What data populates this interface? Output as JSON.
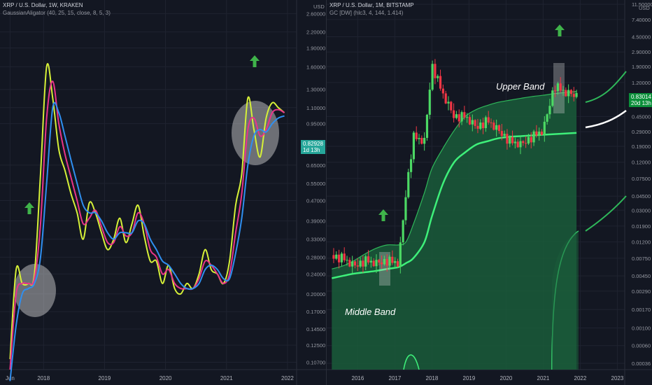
{
  "colors": {
    "background": "#131722",
    "grid": "#1f2330",
    "up": "#4cd964",
    "down": "#f23645",
    "arrow": "#3fb34a",
    "line_yellow": "#d6f038",
    "line_pink": "#e9348a",
    "line_blue": "#2f8ff0",
    "band_fill": "#1a5c3a",
    "band_line": "#3ef07a"
  },
  "left_chart": {
    "title": "XRP / U.S. Dollar, 1W, KRAKEN",
    "indicator": "GaussianAligator (40, 25, 15, close, 8, 5, 3)",
    "price_tag": "0.82928",
    "time_tag": "1d 13h",
    "y_unit": "USD",
    "y_ticks": [
      "2.60000",
      "2.20000",
      "1.90000",
      "1.60000",
      "1.30000",
      "1.10000",
      "0.95000",
      "0.65000",
      "0.55000",
      "0.47000",
      "0.39000",
      "0.33000",
      "0.28000",
      "0.24000",
      "0.20000",
      "0.17000",
      "0.14500",
      "0.12500",
      "0.10700"
    ],
    "x_ticks": [
      "Jun",
      "2018",
      "2019",
      "2020",
      "2021",
      "2022"
    ]
  },
  "right_chart": {
    "title": "XRP / U.S. Dollar, 1M, BITSTAMP",
    "indicator": "GC [DW] (hlc3, 4, 144, 1.414)",
    "price_tag": "0.83014",
    "time_tag": "20d 13h",
    "y_unit": "USD",
    "y_ticks": [
      "11.50000",
      "7.40000",
      "4.50000",
      "2.90000",
      "1.90000",
      "1.20000",
      "0.45000",
      "0.29000",
      "0.19000",
      "0.12000",
      "0.07500",
      "0.04500",
      "0.03000",
      "0.01900",
      "0.01200",
      "0.00750",
      "0.00450",
      "0.00290",
      "0.00170",
      "0.00100",
      "0.00060",
      "0.00036"
    ],
    "x_ticks": [
      "2016",
      "2017",
      "2018",
      "2019",
      "2020",
      "2021",
      "2022",
      "2023"
    ],
    "upper_band_label": "Upper Band",
    "middle_band_label": "Middle Band"
  },
  "chart_data": [
    {
      "type": "line",
      "title": "XRP / U.S. Dollar, 1W, KRAKEN",
      "subtitle": "GaussianAligator (40, 25, 15, close, 8, 5, 3)",
      "y_scale": "log",
      "ylim": [
        0.1,
        2.8
      ],
      "x": [
        2017.45,
        2017.55,
        2017.65,
        2017.75,
        2017.85,
        2017.95,
        2018.05,
        2018.15,
        2018.25,
        2018.35,
        2018.45,
        2018.55,
        2018.65,
        2018.75,
        2018.85,
        2018.95,
        2019.05,
        2019.15,
        2019.25,
        2019.35,
        2019.45,
        2019.55,
        2019.65,
        2019.75,
        2019.85,
        2019.95,
        2020.05,
        2020.15,
        2020.25,
        2020.35,
        2020.45,
        2020.55,
        2020.65,
        2020.75,
        2020.85,
        2020.95,
        2021.05,
        2021.15,
        2021.25,
        2021.35,
        2021.45,
        2021.55,
        2021.65,
        2021.75,
        2021.85,
        2021.95
      ],
      "series": [
        {
          "name": "15",
          "values": [
            0.11,
            0.25,
            0.22,
            0.22,
            0.24,
            0.6,
            1.6,
            1.2,
            0.75,
            0.62,
            0.5,
            0.42,
            0.33,
            0.46,
            0.42,
            0.35,
            0.3,
            0.33,
            0.4,
            0.32,
            0.38,
            0.45,
            0.34,
            0.27,
            0.27,
            0.22,
            0.26,
            0.21,
            0.2,
            0.22,
            0.21,
            0.24,
            0.3,
            0.25,
            0.24,
            0.22,
            0.27,
            0.45,
            0.6,
            1.2,
            0.9,
            0.7,
            1.0,
            1.15,
            1.1,
            1.05
          ]
        },
        {
          "name": "25",
          "values": [
            0.1,
            0.2,
            0.22,
            0.22,
            0.23,
            0.38,
            1.0,
            1.4,
            0.95,
            0.72,
            0.58,
            0.47,
            0.38,
            0.4,
            0.43,
            0.37,
            0.32,
            0.32,
            0.37,
            0.34,
            0.35,
            0.42,
            0.38,
            0.3,
            0.28,
            0.24,
            0.25,
            0.22,
            0.21,
            0.21,
            0.21,
            0.23,
            0.27,
            0.26,
            0.24,
            0.22,
            0.24,
            0.35,
            0.5,
            0.9,
            1.0,
            0.85,
            0.9,
            1.05,
            1.08,
            1.05
          ]
        },
        {
          "name": "40",
          "values": [
            0.09,
            0.15,
            0.2,
            0.21,
            0.22,
            0.28,
            0.55,
            1.1,
            1.05,
            0.85,
            0.68,
            0.55,
            0.45,
            0.42,
            0.42,
            0.39,
            0.35,
            0.33,
            0.35,
            0.35,
            0.35,
            0.39,
            0.38,
            0.33,
            0.3,
            0.27,
            0.26,
            0.24,
            0.22,
            0.21,
            0.21,
            0.22,
            0.25,
            0.26,
            0.25,
            0.23,
            0.23,
            0.29,
            0.4,
            0.65,
            0.85,
            0.9,
            0.88,
            0.95,
            1.0,
            1.02
          ]
        }
      ]
    },
    {
      "type": "line",
      "title": "XRP / U.S. Dollar, 1M, BITSTAMP",
      "subtitle": "GC [DW] (hlc3, 4, 144, 1.414)",
      "y_scale": "log",
      "ylim": [
        0.0003,
        12
      ],
      "x": [
        2015.3,
        2015.6,
        2015.9,
        2016.2,
        2016.5,
        2016.8,
        2017.1,
        2017.3,
        2017.5,
        2017.8,
        2018.0,
        2018.3,
        2018.6,
        2018.9,
        2019.2,
        2019.5,
        2019.8,
        2020.1,
        2020.4,
        2020.7,
        2021.0,
        2021.3,
        2021.6,
        2021.9
      ],
      "series": [
        {
          "name": "close",
          "values": [
            0.008,
            0.0075,
            0.006,
            0.007,
            0.0065,
            0.007,
            0.0065,
            0.05,
            0.25,
            0.22,
            2.0,
            0.85,
            0.45,
            0.45,
            0.33,
            0.4,
            0.3,
            0.22,
            0.2,
            0.25,
            0.3,
            1.1,
            0.9,
            0.83
          ]
        }
      ],
      "bands": {
        "upper": [
          0.0055,
          0.006,
          0.007,
          0.0085,
          0.01,
          0.011,
          0.011,
          0.012,
          0.02,
          0.05,
          0.1,
          0.18,
          0.3,
          0.45,
          0.55,
          0.62,
          0.68,
          0.72,
          0.76,
          0.8,
          0.83,
          0.87,
          0.9,
          0.93
        ],
        "middle": [
          0.0042,
          0.0045,
          0.0048,
          0.005,
          0.0052,
          0.0055,
          0.0058,
          0.0065,
          0.0075,
          0.012,
          0.025,
          0.065,
          0.12,
          0.16,
          0.2,
          0.22,
          0.24,
          0.25,
          0.255,
          0.26,
          0.265,
          0.27,
          0.275,
          0.28
        ]
      }
    }
  ]
}
